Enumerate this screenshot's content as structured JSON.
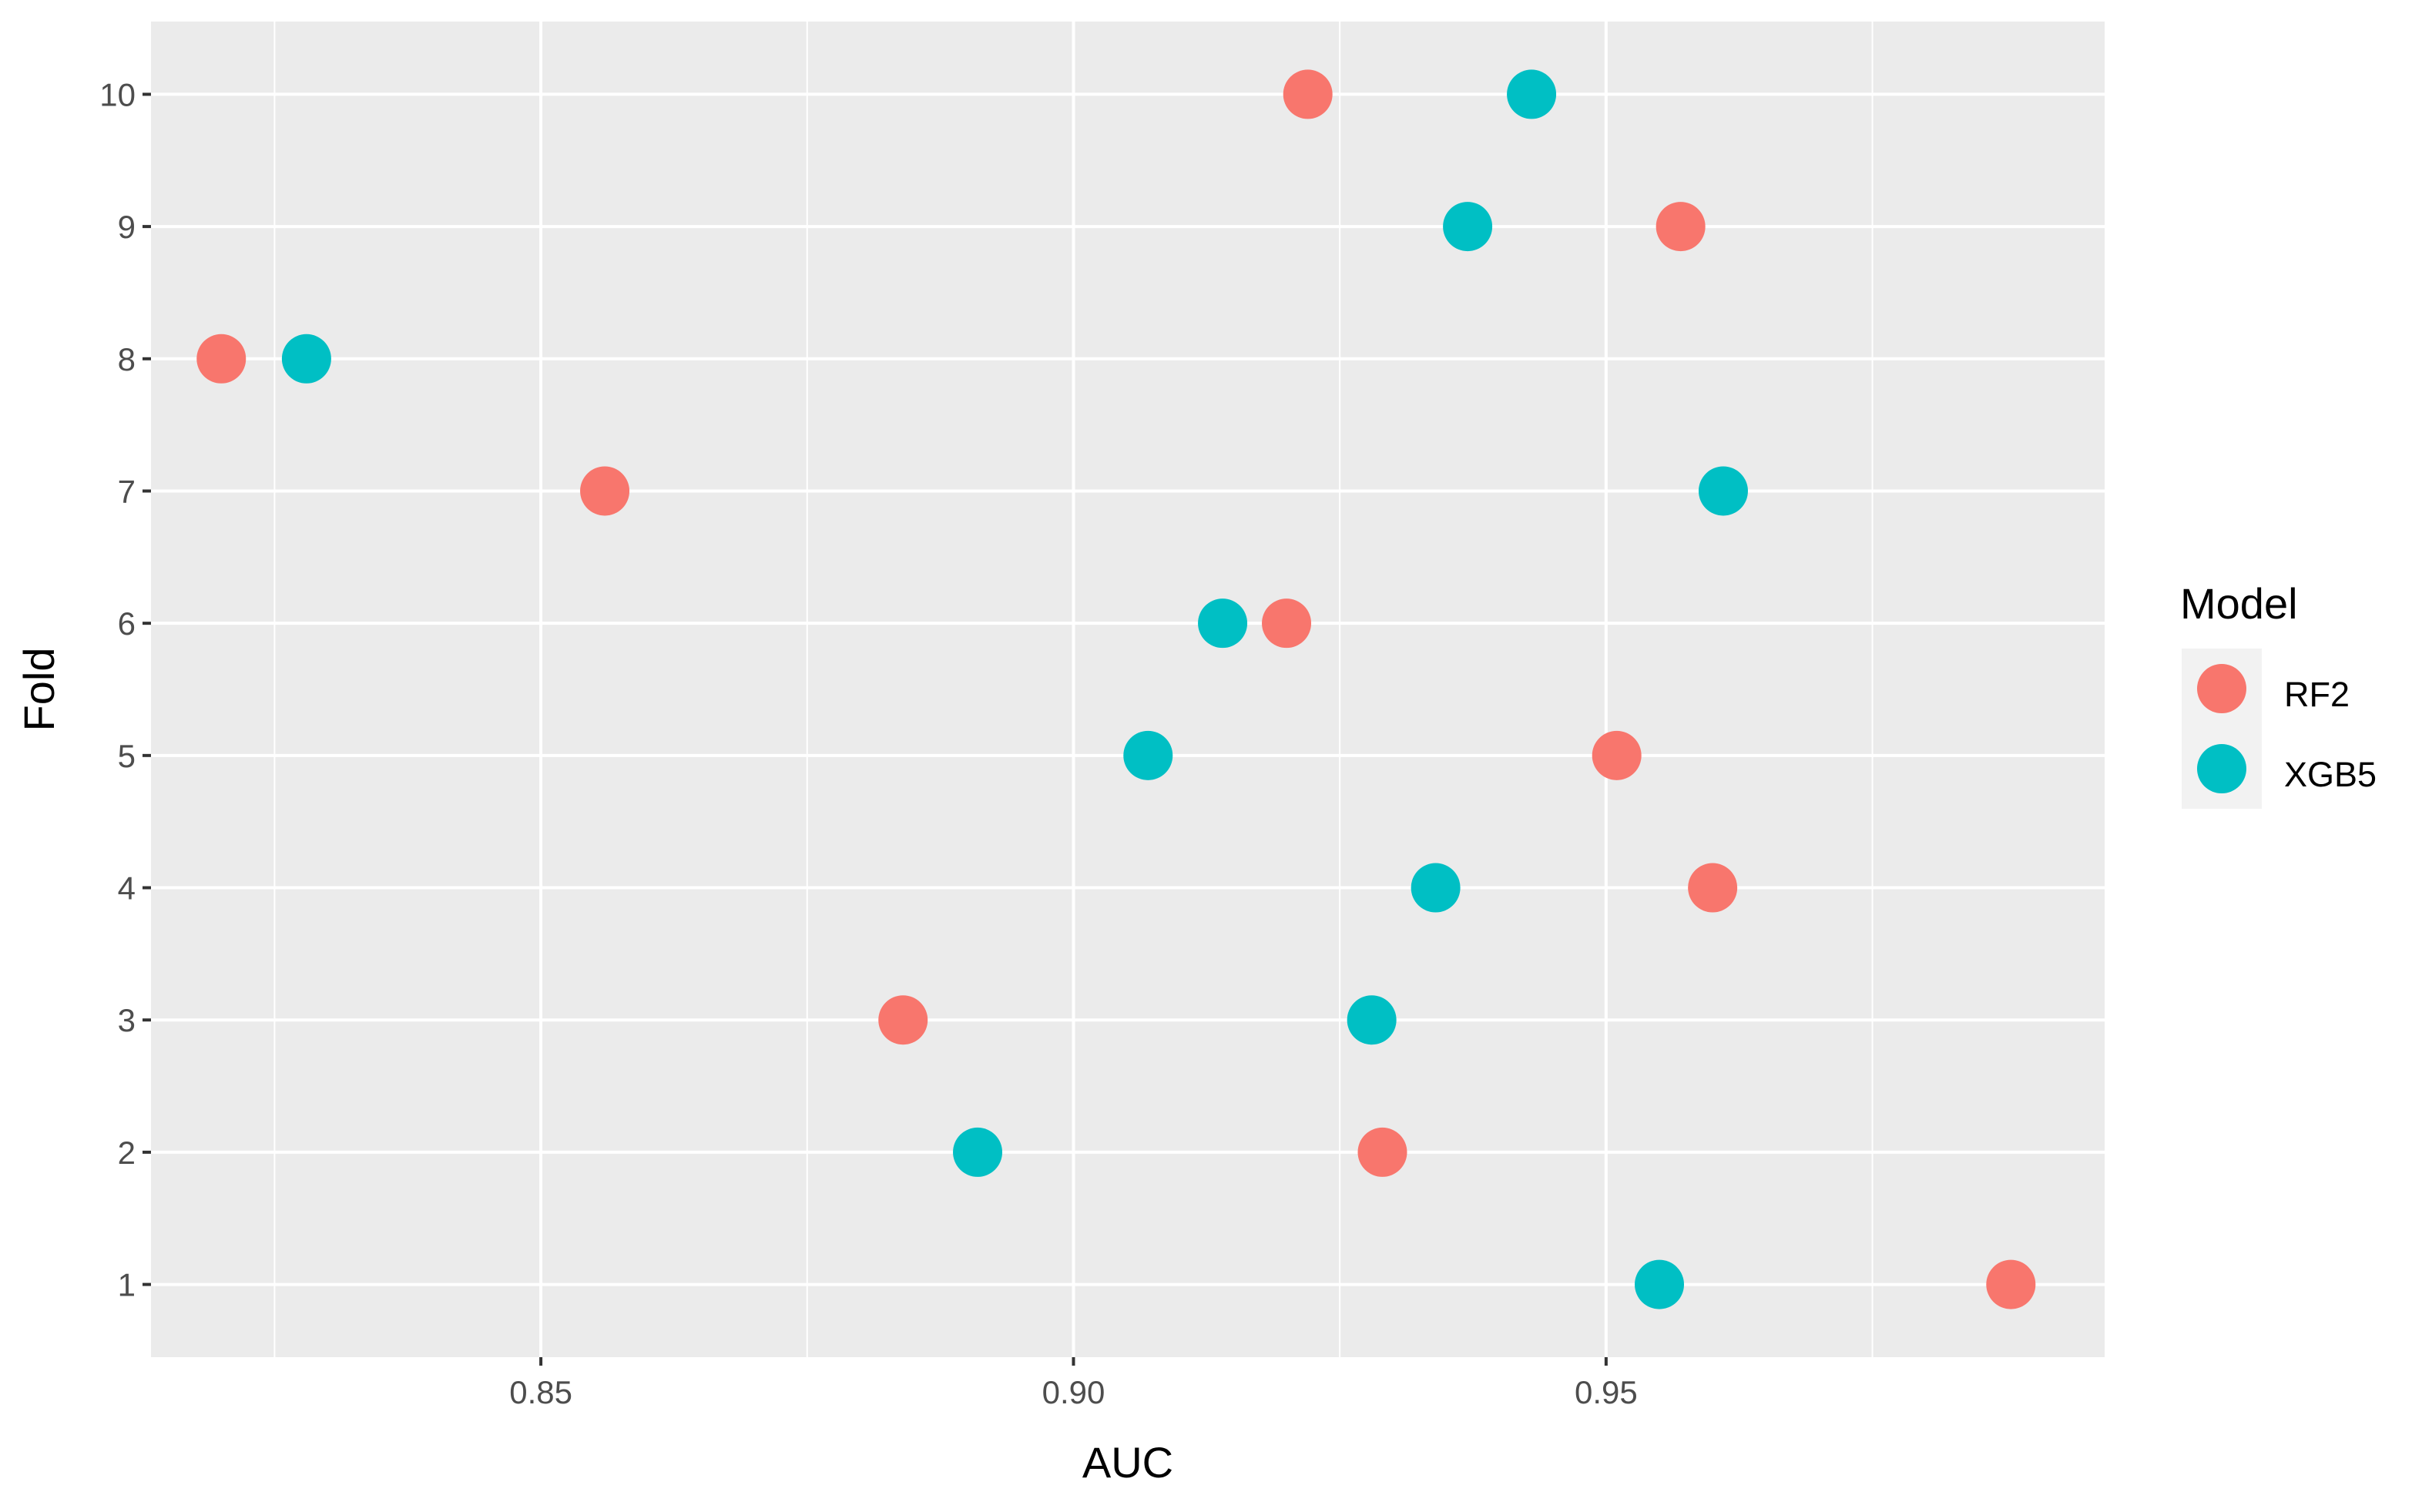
{
  "chart_data": {
    "type": "scatter",
    "title": "",
    "xlabel": "AUC",
    "ylabel": "Fold",
    "xlim": [
      0.8134,
      0.9968
    ],
    "ylim": [
      0.45,
      10.55
    ],
    "xticks": [
      0.85,
      0.9,
      0.95
    ],
    "xtick_labels": [
      "0.85",
      "0.90",
      "0.95"
    ],
    "yticks": [
      1,
      2,
      3,
      4,
      5,
      6,
      7,
      8,
      9,
      10
    ],
    "ytick_labels": [
      "1",
      "2",
      "3",
      "4",
      "5",
      "6",
      "7",
      "8",
      "9",
      "10"
    ],
    "grid": true,
    "background": "#ebebeb",
    "legend": {
      "title": "Model",
      "position": "right"
    },
    "series": [
      {
        "name": "RF2",
        "color": "#f8766d",
        "points": [
          {
            "x": 0.988,
            "y": 1
          },
          {
            "x": 0.929,
            "y": 2
          },
          {
            "x": 0.884,
            "y": 3
          },
          {
            "x": 0.96,
            "y": 4
          },
          {
            "x": 0.951,
            "y": 5
          },
          {
            "x": 0.92,
            "y": 6
          },
          {
            "x": 0.856,
            "y": 7
          },
          {
            "x": 0.82,
            "y": 8
          },
          {
            "x": 0.957,
            "y": 9
          },
          {
            "x": 0.922,
            "y": 10
          }
        ]
      },
      {
        "name": "XGB5",
        "color": "#00bfc4",
        "points": [
          {
            "x": 0.955,
            "y": 1
          },
          {
            "x": 0.891,
            "y": 2
          },
          {
            "x": 0.928,
            "y": 3
          },
          {
            "x": 0.934,
            "y": 4
          },
          {
            "x": 0.907,
            "y": 5
          },
          {
            "x": 0.914,
            "y": 6
          },
          {
            "x": 0.961,
            "y": 7
          },
          {
            "x": 0.828,
            "y": 8
          },
          {
            "x": 0.937,
            "y": 9
          },
          {
            "x": 0.943,
            "y": 10
          }
        ]
      }
    ]
  }
}
